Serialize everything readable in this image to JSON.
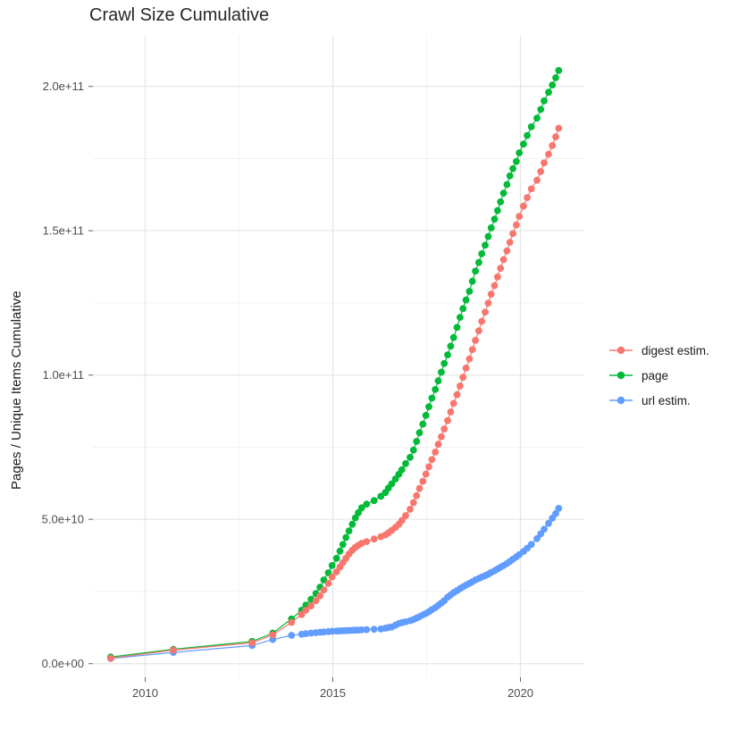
{
  "title": "Crawl Size Cumulative",
  "legend": {
    "position": "right",
    "items": [
      {
        "label": "digest estim."
      },
      {
        "label": "page"
      },
      {
        "label": "url estim."
      }
    ]
  },
  "chart_data": {
    "type": "line-scatter",
    "title": "Crawl Size Cumulative",
    "xlabel": "",
    "ylabel": "Pages / Unique Items Cumulative",
    "grid": true,
    "legend_position": "right",
    "x_axis": {
      "tick_values": [
        2010,
        2015,
        2020
      ],
      "tick_labels": [
        "2010",
        "2015",
        "2020"
      ],
      "minor_gridlines": [
        2012.5,
        2017.5
      ],
      "range": [
        2008.6,
        2021.75
      ]
    },
    "y_axis": {
      "tick_values": [
        0,
        50000000000.0,
        100000000000.0,
        150000000000.0,
        200000000000.0
      ],
      "tick_labels": [
        "0.0e+00",
        "5.0e+10",
        "1.0e+11",
        "1.5e+11",
        "2.0e+11"
      ],
      "minor_gridlines": [
        25000000000.0,
        75000000000.0,
        125000000000.0,
        175000000000.0
      ],
      "range": [
        0,
        216000000000.0
      ]
    },
    "x": [
      2009.08,
      2010.75,
      2012.85,
      2013.4,
      2013.9,
      2014.17,
      2014.28,
      2014.42,
      2014.55,
      2014.66,
      2014.76,
      2014.88,
      2014.98,
      2015.1,
      2015.19,
      2015.27,
      2015.35,
      2015.43,
      2015.52,
      2015.6,
      2015.68,
      2015.77,
      2015.9,
      2016.1,
      2016.28,
      2016.4,
      2016.48,
      2016.57,
      2016.67,
      2016.76,
      2016.84,
      2016.94,
      2017.06,
      2017.15,
      2017.23,
      2017.31,
      2017.4,
      2017.48,
      2017.56,
      2017.64,
      2017.73,
      2017.81,
      2017.89,
      2017.97,
      2018.06,
      2018.14,
      2018.22,
      2018.31,
      2018.39,
      2018.47,
      2018.55,
      2018.64,
      2018.72,
      2018.8,
      2018.89,
      2018.97,
      2019.06,
      2019.14,
      2019.22,
      2019.31,
      2019.39,
      2019.47,
      2019.55,
      2019.64,
      2019.72,
      2019.8,
      2019.89,
      2019.97,
      2020.08,
      2020.18,
      2020.29,
      2020.44,
      2020.54,
      2020.63,
      2020.75,
      2020.85,
      2020.94,
      2021.02
    ],
    "series": [
      {
        "name": "digest estim.",
        "color": "#F8766D",
        "values": [
          1900000000.0,
          4700000000.0,
          7200000000.0,
          10000000000.0,
          14300000000.0,
          17000000000.0,
          18500000000.0,
          20000000000.0,
          21800000000.0,
          23500000000.0,
          25500000000.0,
          27800000000.0,
          30000000000.0,
          31800000000.0,
          33500000000.0,
          35000000000.0,
          36500000000.0,
          38000000000.0,
          39300000000.0,
          40300000000.0,
          41000000000.0,
          41700000000.0,
          42300000000.0,
          43200000000.0,
          44000000000.0,
          44600000000.0,
          45300000000.0,
          46200000000.0,
          47200000000.0,
          48300000000.0,
          49600000000.0,
          51300000000.0,
          53500000000.0,
          55800000000.0,
          58200000000.0,
          60700000000.0,
          63200000000.0,
          65700000000.0,
          68200000000.0,
          70700000000.0,
          73300000000.0,
          76000000000.0,
          78600000000.0,
          81300000000.0,
          84200000000.0,
          87200000000.0,
          90200000000.0,
          93200000000.0,
          96200000000.0,
          99200000000.0,
          102400000000.0,
          105600000000.0,
          108800000000.0,
          112000000000.0,
          115300000000.0,
          118600000000.0,
          121800000000.0,
          124900000000.0,
          128000000000.0,
          131000000000.0,
          134000000000.0,
          137000000000.0,
          140000000000.0,
          143000000000.0,
          146000000000.0,
          149000000000.0,
          152000000000.0,
          155000000000.0,
          158500000000.0,
          161500000000.0,
          164500000000.0,
          167500000000.0,
          170500000000.0,
          173500000000.0,
          176500000000.0,
          179500000000.0,
          182500000000.0,
          185500000000.0
        ]
      },
      {
        "name": "page",
        "color": "#00BA38",
        "values": [
          2300000000.0,
          5000000000.0,
          7700000000.0,
          10600000000.0,
          15500000000.0,
          18500000000.0,
          20300000000.0,
          22300000000.0,
          24300000000.0,
          26500000000.0,
          29000000000.0,
          31500000000.0,
          34000000000.0,
          36500000000.0,
          39000000000.0,
          41300000000.0,
          43700000000.0,
          46000000000.0,
          48300000000.0,
          50500000000.0,
          52300000000.0,
          54000000000.0,
          55300000000.0,
          56500000000.0,
          58000000000.0,
          59300000000.0,
          60800000000.0,
          62300000000.0,
          64000000000.0,
          65600000000.0,
          67200000000.0,
          69300000000.0,
          71500000000.0,
          74000000000.0,
          77000000000.0,
          80000000000.0,
          83000000000.0,
          86000000000.0,
          89000000000.0,
          92000000000.0,
          95000000000.0,
          98000000000.0,
          101000000000.0,
          104000000000.0,
          107000000000.0,
          110000000000.0,
          113000000000.0,
          116500000000.0,
          120000000000.0,
          123000000000.0,
          126000000000.0,
          129000000000.0,
          132500000000.0,
          136000000000.0,
          139000000000.0,
          142000000000.0,
          145000000000.0,
          148000000000.0,
          151000000000.0,
          154000000000.0,
          157000000000.0,
          160000000000.0,
          163000000000.0,
          166000000000.0,
          169000000000.0,
          171500000000.0,
          174000000000.0,
          177000000000.0,
          180000000000.0,
          183000000000.0,
          186000000000.0,
          189000000000.0,
          192000000000.0,
          195000000000.0,
          198000000000.0,
          200500000000.0,
          203000000000.0,
          205500000000.0
        ]
      },
      {
        "name": "url estim.",
        "color": "#619CFF",
        "values": [
          1800000000.0,
          3900000000.0,
          6300000000.0,
          8400000000.0,
          9800000000.0,
          10200000000.0,
          10400000000.0,
          10600000000.0,
          10750000000.0,
          10900000000.0,
          11000000000.0,
          11100000000.0,
          11200000000.0,
          11300000000.0,
          11350000000.0,
          11400000000.0,
          11450000000.0,
          11500000000.0,
          11550000000.0,
          11600000000.0,
          11650000000.0,
          11700000000.0,
          11800000000.0,
          11900000000.0,
          12000000000.0,
          12300000000.0,
          12500000000.0,
          12700000000.0,
          13300000000.0,
          13900000000.0,
          14200000000.0,
          14500000000.0,
          14900000000.0,
          15300000000.0,
          15800000000.0,
          16300000000.0,
          16900000000.0,
          17400000000.0,
          18000000000.0,
          18700000000.0,
          19400000000.0,
          20200000000.0,
          21000000000.0,
          21800000000.0,
          23000000000.0,
          23800000000.0,
          24600000000.0,
          25300000000.0,
          26000000000.0,
          26600000000.0,
          27200000000.0,
          27800000000.0,
          28400000000.0,
          29000000000.0,
          29500000000.0,
          30000000000.0,
          30500000000.0,
          31000000000.0,
          31600000000.0,
          32200000000.0,
          32800000000.0,
          33400000000.0,
          34000000000.0,
          34700000000.0,
          35400000000.0,
          36200000000.0,
          37000000000.0,
          37800000000.0,
          38900000000.0,
          40000000000.0,
          41300000000.0,
          43300000000.0,
          45000000000.0,
          46600000000.0,
          48600000000.0,
          50400000000.0,
          52000000000.0,
          53800000000.0
        ]
      }
    ]
  }
}
